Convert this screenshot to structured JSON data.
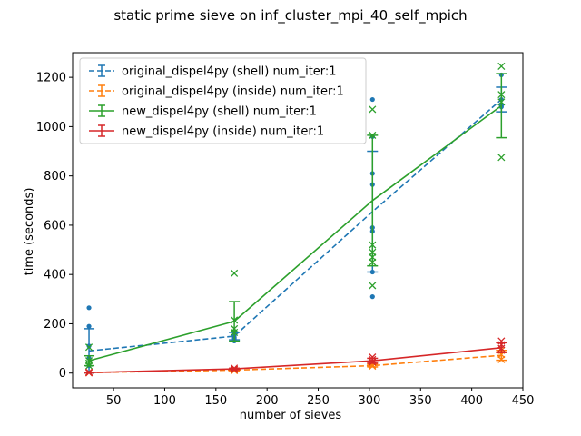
{
  "chart_data": {
    "type": "line",
    "title": "static prime sieve on inf_cluster_mpi_40_self_mpich",
    "xlabel": "number of sieves",
    "ylabel": "time (seconds)",
    "xlim": [
      10,
      450
    ],
    "ylim": [
      -60,
      1300
    ],
    "xticks": [
      50,
      100,
      150,
      200,
      250,
      300,
      350,
      400,
      450
    ],
    "yticks": [
      0,
      200,
      400,
      600,
      800,
      1000,
      1200
    ],
    "legend_position": "top-left",
    "grid": false,
    "series": [
      {
        "name": "original_dispel4py (shell) num_iter:1",
        "color": "#1f77b4",
        "dash": "dashed",
        "marker": "dot",
        "x": [
          26,
          168,
          303,
          429
        ],
        "y": [
          90,
          150,
          655,
          1110
        ],
        "err": [
          90,
          15,
          245,
          50
        ],
        "scatter": [
          [
            26,
            265
          ],
          [
            26,
            190
          ],
          [
            26,
            110
          ],
          [
            26,
            60
          ],
          [
            26,
            30
          ],
          [
            168,
            165
          ],
          [
            168,
            155
          ],
          [
            168,
            145
          ],
          [
            168,
            140
          ],
          [
            168,
            130
          ],
          [
            303,
            1110
          ],
          [
            303,
            960
          ],
          [
            303,
            810
          ],
          [
            303,
            765
          ],
          [
            303,
            590
          ],
          [
            303,
            575
          ],
          [
            303,
            410
          ],
          [
            303,
            310
          ],
          [
            429,
            1210
          ],
          [
            429,
            1110
          ],
          [
            429,
            1090
          ],
          [
            429,
            1085
          ],
          [
            429,
            1080
          ]
        ]
      },
      {
        "name": "original_dispel4py (inside) num_iter:1",
        "color": "#ff7f0e",
        "dash": "dashed",
        "marker": "x",
        "x": [
          26,
          168,
          303,
          429
        ],
        "y": [
          2,
          12,
          30,
          72
        ],
        "err": [
          1,
          3,
          5,
          20
        ],
        "scatter": [
          [
            26,
            3
          ],
          [
            26,
            1
          ],
          [
            168,
            15
          ],
          [
            168,
            10
          ],
          [
            303,
            33
          ],
          [
            303,
            28
          ],
          [
            429,
            92
          ],
          [
            429,
            75
          ],
          [
            429,
            55
          ]
        ]
      },
      {
        "name": "new_dispel4py (shell) num_iter:1",
        "color": "#2ca02c",
        "dash": "solid",
        "marker": "x",
        "x": [
          26,
          168,
          303,
          429
        ],
        "y": [
          50,
          210,
          700,
          1085
        ],
        "err": [
          20,
          80,
          265,
          130
        ],
        "scatter": [
          [
            26,
            105
          ],
          [
            26,
            50
          ],
          [
            26,
            40
          ],
          [
            26,
            30
          ],
          [
            168,
            405
          ],
          [
            168,
            215
          ],
          [
            168,
            180
          ],
          [
            168,
            165
          ],
          [
            303,
            1070
          ],
          [
            303,
            965
          ],
          [
            303,
            520
          ],
          [
            303,
            490
          ],
          [
            303,
            470
          ],
          [
            303,
            450
          ],
          [
            303,
            355
          ],
          [
            429,
            1245
          ],
          [
            429,
            1130
          ],
          [
            429,
            1100
          ],
          [
            429,
            875
          ]
        ]
      },
      {
        "name": "new_dispel4py (inside) num_iter:1",
        "color": "#d62728",
        "dash": "solid",
        "marker": "x",
        "x": [
          26,
          168,
          303,
          429
        ],
        "y": [
          2,
          17,
          50,
          103
        ],
        "err": [
          1,
          3,
          10,
          20
        ],
        "scatter": [
          [
            26,
            4
          ],
          [
            26,
            1
          ],
          [
            168,
            20
          ],
          [
            168,
            14
          ],
          [
            303,
            65
          ],
          [
            303,
            55
          ],
          [
            303,
            45
          ],
          [
            429,
            130
          ],
          [
            429,
            115
          ],
          [
            429,
            100
          ]
        ]
      }
    ]
  }
}
